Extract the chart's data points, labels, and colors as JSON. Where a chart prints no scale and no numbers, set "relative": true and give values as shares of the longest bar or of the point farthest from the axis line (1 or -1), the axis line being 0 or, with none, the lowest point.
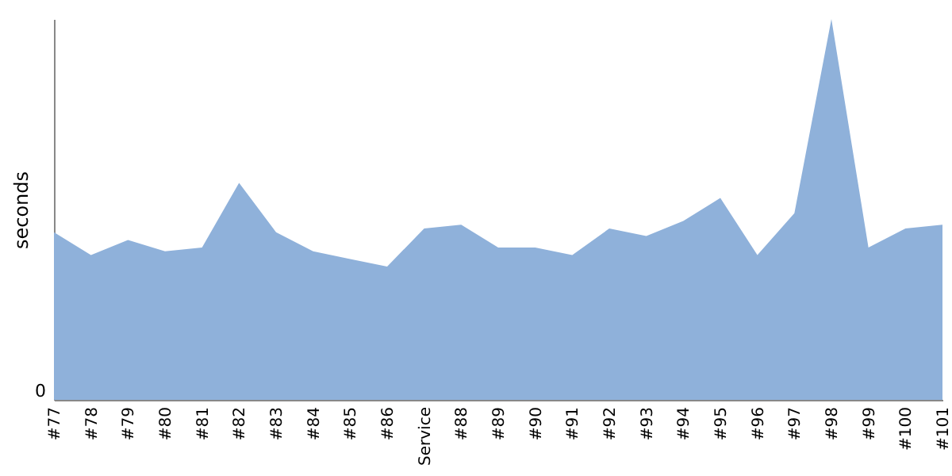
{
  "chart_data": {
    "type": "area",
    "relative": true,
    "ylabel": "seconds",
    "color": "#8fb1da",
    "categories": [
      "#77",
      "#78",
      "#79",
      "#80",
      "#81",
      "#82",
      "#83",
      "#84",
      "#85",
      "#86",
      "Service",
      "#88",
      "#89",
      "#90",
      "#91",
      "#92",
      "#93",
      "#94",
      "#95",
      "#96",
      "#97",
      "#98",
      "#99",
      "#100",
      "#101"
    ],
    "values": [
      0.44,
      0.38,
      0.42,
      0.39,
      0.4,
      0.57,
      0.44,
      0.39,
      0.37,
      0.35,
      0.45,
      0.46,
      0.4,
      0.4,
      0.38,
      0.45,
      0.43,
      0.47,
      0.53,
      0.38,
      0.49,
      1,
      0.4,
      0.45,
      0.46
    ],
    "annotations": [
      "0"
    ]
  }
}
